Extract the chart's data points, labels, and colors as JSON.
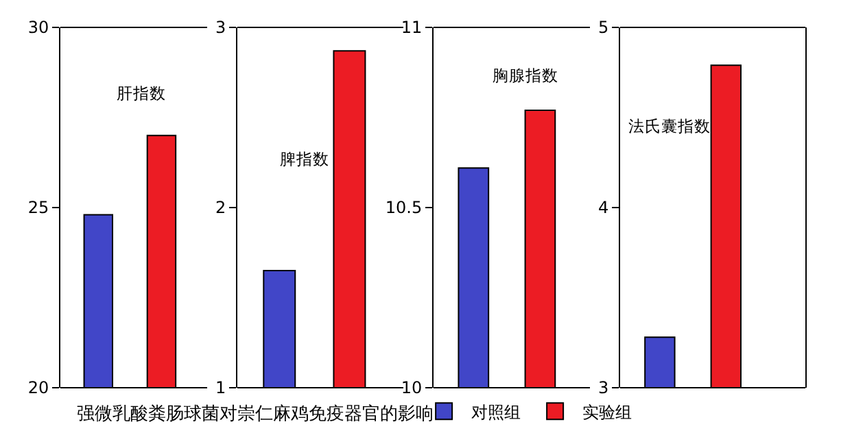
{
  "chart_data": [
    {
      "type": "bar",
      "title": "肝指数",
      "categories": [
        null,
        null
      ],
      "ylim": [
        20,
        30
      ],
      "yticks": [
        20,
        25,
        30
      ],
      "legend": "bottom",
      "annotations": [
        "强微乳酸粪肠球菌对崇仁麻鸡免疫器官的影响"
      ],
      "series": [
        {
          "name": "对照组",
          "color": "#4146c8",
          "values": [
            24.8,
            null
          ]
        },
        {
          "name": "实验组",
          "color": "#ec1c24",
          "values": [
            null,
            27.0
          ]
        }
      ]
    },
    {
      "type": "bar",
      "title": "脾指数",
      "categories": [
        null,
        null
      ],
      "ylim": [
        1,
        3
      ],
      "yticks": [
        1,
        2,
        3
      ],
      "series": [
        {
          "color": "#4146c8",
          "values": [
            1.65,
            null
          ]
        },
        {
          "color": "#ec1c24",
          "values": [
            null,
            2.87
          ]
        }
      ]
    },
    {
      "type": "bar",
      "title": "胸腺指数",
      "categories": [
        null,
        null
      ],
      "ylim": [
        10,
        11
      ],
      "yticks": [
        10,
        10.5,
        11
      ],
      "series": [
        {
          "color": "#4146c8",
          "values": [
            10.61,
            null
          ]
        },
        {
          "color": "#ec1c24",
          "values": [
            null,
            10.77
          ]
        }
      ]
    },
    {
      "type": "bar",
      "title": "法氏囊指数",
      "categories": [
        null,
        null
      ],
      "ylim": [
        3,
        5
      ],
      "yticks": [
        3,
        4,
        5
      ],
      "series": [
        {
          "color": "#4146c8",
          "values": [
            3.28,
            null
          ]
        },
        {
          "color": "#ec1c24",
          "values": [
            null,
            4.79
          ]
        }
      ]
    }
  ]
}
